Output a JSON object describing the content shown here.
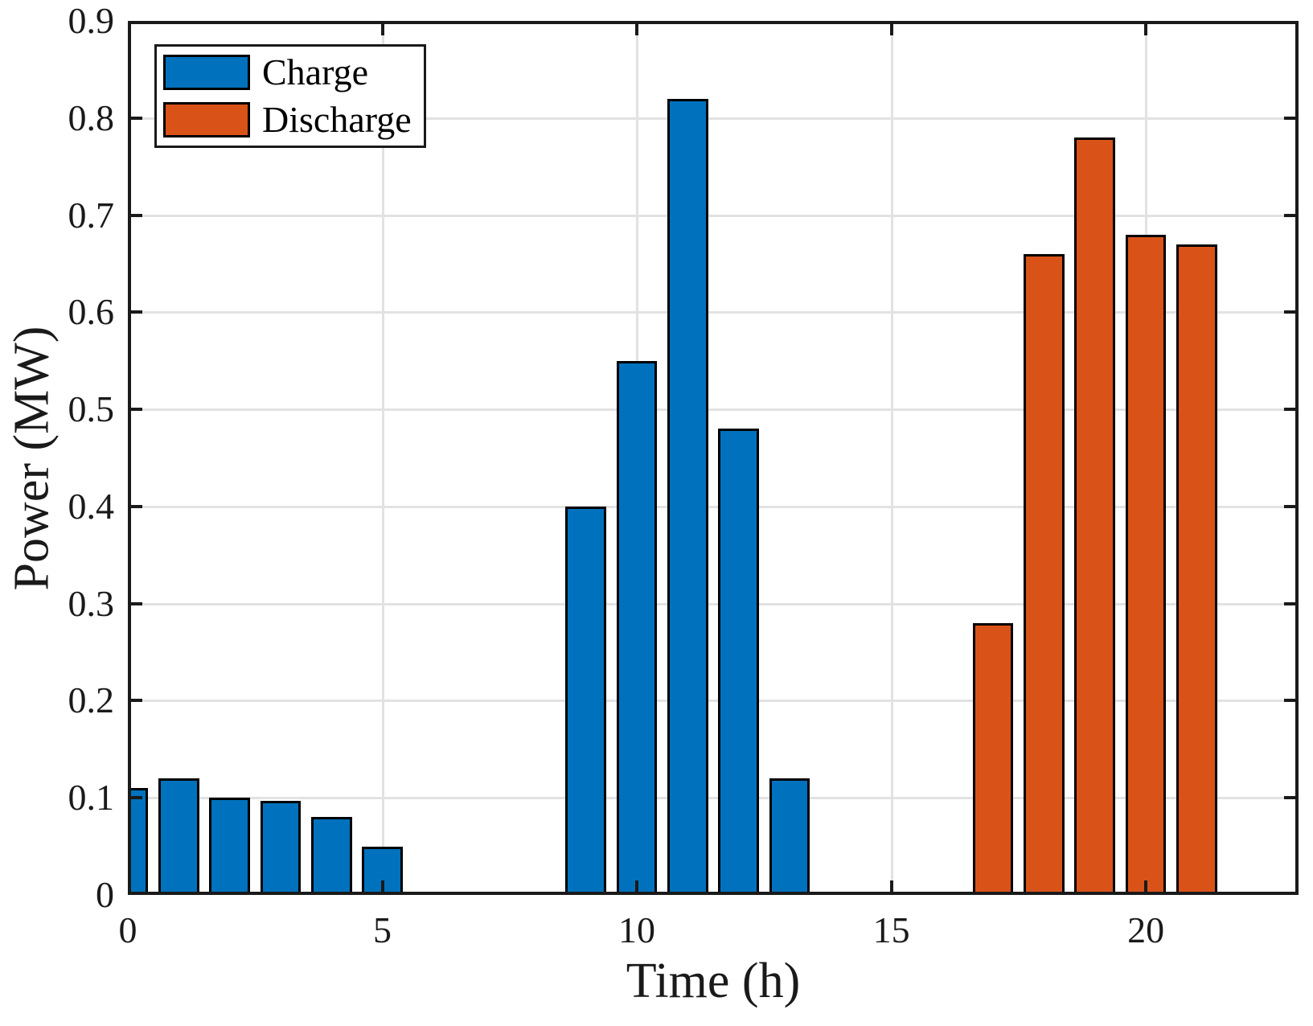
{
  "figure": {
    "background": "#ffffff"
  },
  "chart_data": {
    "type": "bar",
    "title": "",
    "xlabel": "Time (h)",
    "ylabel": "Power (MW)",
    "xlim": [
      0,
      23
    ],
    "ylim": [
      0,
      0.9
    ],
    "x_ticks": [
      0,
      5,
      10,
      15,
      20
    ],
    "x_tick_labels": [
      "0",
      "5",
      "10",
      "15",
      "20"
    ],
    "y_ticks": [
      0,
      0.1,
      0.2,
      0.3,
      0.4,
      0.5,
      0.6,
      0.7,
      0.8,
      0.9
    ],
    "y_tick_labels": [
      "0",
      "0.1",
      "0.2",
      "0.3",
      "0.4",
      "0.5",
      "0.6",
      "0.7",
      "0.8",
      "0.9"
    ],
    "grid": true,
    "bar_width": 0.8,
    "legend_position": "top-left",
    "series": [
      {
        "name": "Charge",
        "color": "#0072BD",
        "edge_color": "#000000",
        "x": [
          0,
          1,
          2,
          3,
          4,
          5,
          9,
          10,
          11,
          12,
          13
        ],
        "values": [
          0.11,
          0.12,
          0.1,
          0.097,
          0.08,
          0.05,
          0.4,
          0.55,
          0.82,
          0.48,
          0.12
        ]
      },
      {
        "name": "Discharge",
        "color": "#D95319",
        "edge_color": "#000000",
        "x": [
          17,
          18,
          19,
          20,
          21
        ],
        "values": [
          0.28,
          0.66,
          0.78,
          0.68,
          0.67
        ]
      }
    ]
  },
  "legend": {
    "items": [
      {
        "label": "Charge",
        "color": "#0072BD"
      },
      {
        "label": "Discharge",
        "color": "#D95319"
      }
    ]
  },
  "colors": {
    "axis": "#1a1a1a",
    "grid": "#e2e2e2",
    "text": "#1a1a1a",
    "bar_edge": "#000000"
  }
}
